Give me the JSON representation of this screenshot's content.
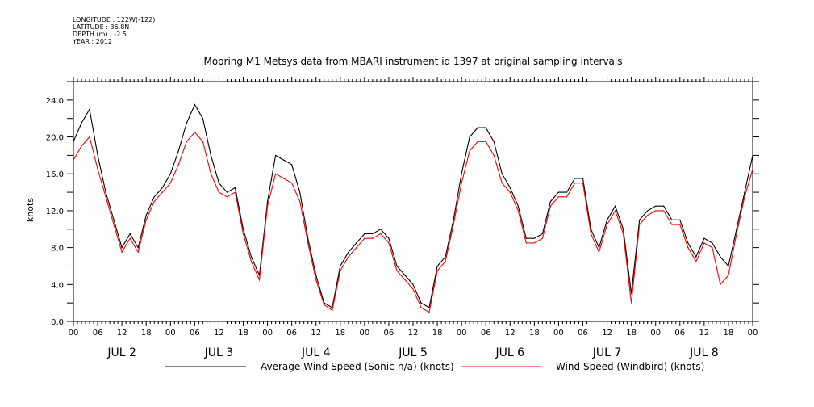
{
  "header": {
    "longitude": "LONGITUDE : 122W(-122)",
    "latitude": "LATITUDE : 36.8N",
    "depth": "DEPTH (m) : -2.5",
    "year": "YEAR : 2012"
  },
  "chart_data": {
    "type": "line",
    "title": "Mooring M1 Metsys data from MBARI instrument id 1397 at original sampling intervals",
    "ylabel": "knots",
    "xlabel": "",
    "ylim": [
      0,
      26
    ],
    "xlim": [
      0,
      168
    ],
    "y_ticks": [
      "0.0",
      "4.0",
      "8.0",
      "12.0",
      "16.0",
      "20.0",
      "24.0"
    ],
    "x_hour_ticks": [
      "00",
      "06",
      "12",
      "18",
      "00",
      "06",
      "12",
      "18",
      "00",
      "06",
      "12",
      "18",
      "00",
      "06",
      "12",
      "18",
      "00",
      "06",
      "12",
      "18",
      "00",
      "06",
      "12",
      "18",
      "00",
      "06",
      "12",
      "18",
      "00"
    ],
    "day_labels": [
      "JUL 2",
      "JUL 3",
      "JUL 4",
      "JUL 5",
      "JUL 6",
      "JUL 7",
      "JUL 8"
    ],
    "grid": false,
    "legend_position": "bottom",
    "series": [
      {
        "name": "Average Wind Speed (Sonic-n/a) (knots)",
        "color": "#000000",
        "x": [
          0,
          2,
          4,
          6,
          8,
          10,
          12,
          14,
          16,
          18,
          20,
          22,
          24,
          26,
          28,
          30,
          32,
          34,
          36,
          38,
          40,
          42,
          44,
          46,
          48,
          50,
          52,
          54,
          56,
          58,
          60,
          62,
          64,
          66,
          68,
          70,
          72,
          74,
          76,
          78,
          80,
          82,
          84,
          86,
          88,
          90,
          92,
          94,
          96,
          98,
          100,
          102,
          104,
          106,
          108,
          110,
          112,
          114,
          116,
          118,
          120,
          122,
          124,
          126,
          128,
          130,
          132,
          134,
          136,
          138,
          140,
          142,
          144,
          146,
          148,
          150,
          152,
          154,
          156,
          158,
          160,
          162,
          164,
          166,
          168
        ],
        "values": [
          19.5,
          21.5,
          23.0,
          18.0,
          14.0,
          11.0,
          8.0,
          9.5,
          8.0,
          11.5,
          13.5,
          14.5,
          16.0,
          18.5,
          21.5,
          23.5,
          22.0,
          18.0,
          15.0,
          14.0,
          14.5,
          10.0,
          7.0,
          5.0,
          13.0,
          18.0,
          17.5,
          17.0,
          14.0,
          9.0,
          5.0,
          2.0,
          1.5,
          6.0,
          7.5,
          8.5,
          9.5,
          9.5,
          10.0,
          9.0,
          6.0,
          5.0,
          4.0,
          2.0,
          1.5,
          6.0,
          7.0,
          11.0,
          16.0,
          20.0,
          21.0,
          21.0,
          19.5,
          16.0,
          14.5,
          12.5,
          9.0,
          9.0,
          9.5,
          13.0,
          14.0,
          14.0,
          15.5,
          15.5,
          10.0,
          8.0,
          11.0,
          12.5,
          10.0,
          3.0,
          11.0,
          12.0,
          12.5,
          12.5,
          11.0,
          11.0,
          8.5,
          7.0,
          9.0,
          8.5,
          7.0,
          6.0,
          10.0,
          14.0,
          18.0
        ]
      },
      {
        "name": "Wind Speed (Windbird) (knots)",
        "color": "#ff0000",
        "x": [
          0,
          2,
          4,
          6,
          8,
          10,
          12,
          14,
          16,
          18,
          20,
          22,
          24,
          26,
          28,
          30,
          32,
          34,
          36,
          38,
          40,
          42,
          44,
          46,
          48,
          50,
          52,
          54,
          56,
          58,
          60,
          62,
          64,
          66,
          68,
          70,
          72,
          74,
          76,
          78,
          80,
          82,
          84,
          86,
          88,
          90,
          92,
          94,
          96,
          98,
          100,
          102,
          104,
          106,
          108,
          110,
          112,
          114,
          116,
          118,
          120,
          122,
          124,
          126,
          128,
          130,
          132,
          134,
          136,
          138,
          140,
          142,
          144,
          146,
          148,
          150,
          152,
          154,
          156,
          158,
          160,
          162,
          164,
          166,
          168
        ],
        "values": [
          17.5,
          19.0,
          20.0,
          16.5,
          13.5,
          10.5,
          7.5,
          9.0,
          7.5,
          11.0,
          13.0,
          14.0,
          15.0,
          17.0,
          19.5,
          20.5,
          19.5,
          16.0,
          14.0,
          13.5,
          14.0,
          9.5,
          6.5,
          4.5,
          12.5,
          16.0,
          15.5,
          15.0,
          13.0,
          8.5,
          4.5,
          1.8,
          1.2,
          5.5,
          7.0,
          8.0,
          9.0,
          9.0,
          9.5,
          8.5,
          5.5,
          4.5,
          3.5,
          1.5,
          1.0,
          5.5,
          6.5,
          10.5,
          15.0,
          18.5,
          19.5,
          19.5,
          18.0,
          15.0,
          14.0,
          12.0,
          8.5,
          8.5,
          9.0,
          12.5,
          13.5,
          13.5,
          15.0,
          15.0,
          9.5,
          7.5,
          10.5,
          12.0,
          9.5,
          2.0,
          10.5,
          11.5,
          12.0,
          12.0,
          10.5,
          10.5,
          8.0,
          6.5,
          8.5,
          8.0,
          4.0,
          5.0,
          9.5,
          13.5,
          16.5
        ]
      }
    ]
  }
}
